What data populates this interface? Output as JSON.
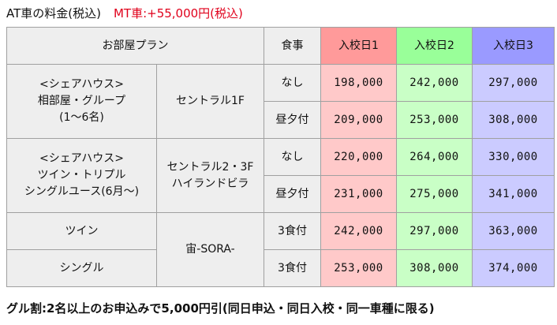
{
  "title": {
    "main": "AT車の料金(税込)",
    "mt": "MT車:+55,000円(税込)"
  },
  "headers": {
    "plan": "お部屋プラン",
    "meal": "食事",
    "day1": "入校日1",
    "day2": "入校日2",
    "day3": "入校日3"
  },
  "groups": [
    {
      "plan_lines": [
        "<シェアハウス>",
        "相部屋・グループ",
        "(1〜6名)"
      ],
      "building_lines": [
        "セントラル1F"
      ],
      "rows": [
        {
          "meal": "なし",
          "prices": [
            "198,000",
            "242,000",
            "297,000"
          ]
        },
        {
          "meal": "昼夕付",
          "prices": [
            "209,000",
            "253,000",
            "308,000"
          ]
        }
      ]
    },
    {
      "plan_lines": [
        "<シェアハウス>",
        "ツイン・トリプル",
        "シングルユース(6月〜)"
      ],
      "building_lines": [
        "セントラル2・3F",
        "ハイランドビラ"
      ],
      "rows": [
        {
          "meal": "なし",
          "prices": [
            "220,000",
            "264,000",
            "330,000"
          ]
        },
        {
          "meal": "昼夕付",
          "prices": [
            "231,000",
            "275,000",
            "341,000"
          ]
        }
      ]
    },
    {
      "building_lines": [
        "宙-SORA-"
      ],
      "rows": [
        {
          "plan": "ツイン",
          "meal": "3食付",
          "prices": [
            "242,000",
            "297,000",
            "363,000"
          ]
        },
        {
          "plan": "シングル",
          "meal": "3食付",
          "prices": [
            "253,000",
            "308,000",
            "374,000"
          ]
        }
      ]
    }
  ],
  "note": "グル割:2名以上のお申込みで5,000円引(同日申込・同日入校・同一車種に限る)",
  "colors": {
    "header_day1": "#ff9a9a",
    "header_day2": "#99ff99",
    "header_day3": "#9a9aff",
    "cell_day1": "#ffc9c9",
    "cell_day2": "#c9ffc6",
    "cell_day3": "#cbcbff",
    "mt_text": "#e0001b"
  }
}
